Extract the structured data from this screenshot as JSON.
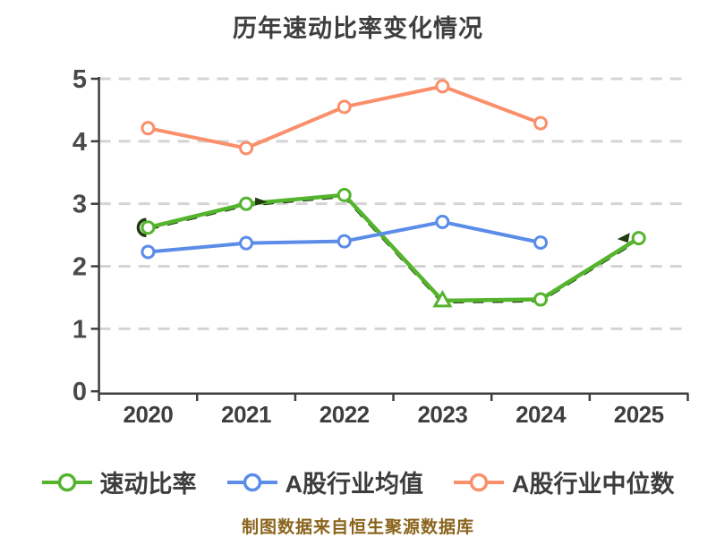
{
  "title": {
    "text": "历年速动比率变化情况",
    "color": "#3e3e3e"
  },
  "caption": {
    "text": "制图数据来自恒生聚源数据库",
    "color": "#8a641c"
  },
  "axis": {
    "spine_color": "#3f3f3f",
    "tick_label_color": "#4a4a4a",
    "x_label_color": "#3e3e3e",
    "grid_color": "#d4d4d4"
  },
  "chart_data": {
    "type": "line",
    "title": "历年速动比率变化情况",
    "categories": [
      "2020",
      "2021",
      "2022",
      "2023",
      "2024",
      "2025"
    ],
    "series": [
      {
        "name": "速动比率",
        "color": "#55b42d",
        "marker": "circle-white-fill",
        "values": [
          2.62,
          3.0,
          3.14,
          1.45,
          1.47,
          2.45
        ]
      },
      {
        "name": "A股行业均值",
        "color": "#5a8ce8",
        "marker": "circle-white-fill",
        "values": [
          2.23,
          2.37,
          2.4,
          2.71,
          2.38,
          null
        ]
      },
      {
        "name": "A股行业中位数",
        "color": "#fa8f6b",
        "marker": "circle-white-fill",
        "values": [
          4.21,
          3.89,
          4.55,
          4.88,
          4.29,
          null
        ]
      }
    ],
    "ylim": [
      0,
      5
    ],
    "yticks": [
      0,
      1,
      2,
      3,
      4,
      5
    ],
    "grid": "horizontal-dashed",
    "legend_position": "bottom"
  }
}
